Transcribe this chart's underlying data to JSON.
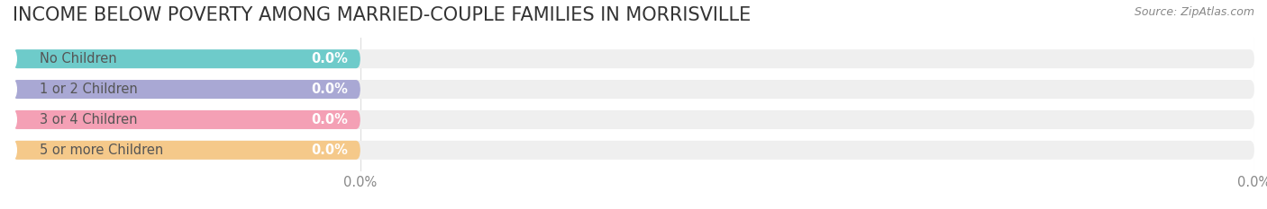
{
  "title": "INCOME BELOW POVERTY AMONG MARRIED-COUPLE FAMILIES IN MORRISVILLE",
  "source": "Source: ZipAtlas.com",
  "categories": [
    "No Children",
    "1 or 2 Children",
    "3 or 4 Children",
    "5 or more Children"
  ],
  "values": [
    0.0,
    0.0,
    0.0,
    0.0
  ],
  "bar_colors": [
    "#6ecbca",
    "#a9a8d4",
    "#f4a0b5",
    "#f5c98a"
  ],
  "bar_bg_color": "#efefef",
  "circle_colors": [
    "#6ecbca",
    "#a9a8d4",
    "#f4a0b5",
    "#f5c98a"
  ],
  "background_color": "#ffffff",
  "title_fontsize": 15,
  "label_fontsize": 10.5,
  "value_fontsize": 10.5,
  "source_fontsize": 9,
  "xlim": [
    0,
    100
  ],
  "bar_height": 0.62,
  "bar_value_text_color": "#ffffff",
  "label_text_color": "#555555",
  "axis_tick_color": "#aaaaaa",
  "tick_label_color": "#888888"
}
